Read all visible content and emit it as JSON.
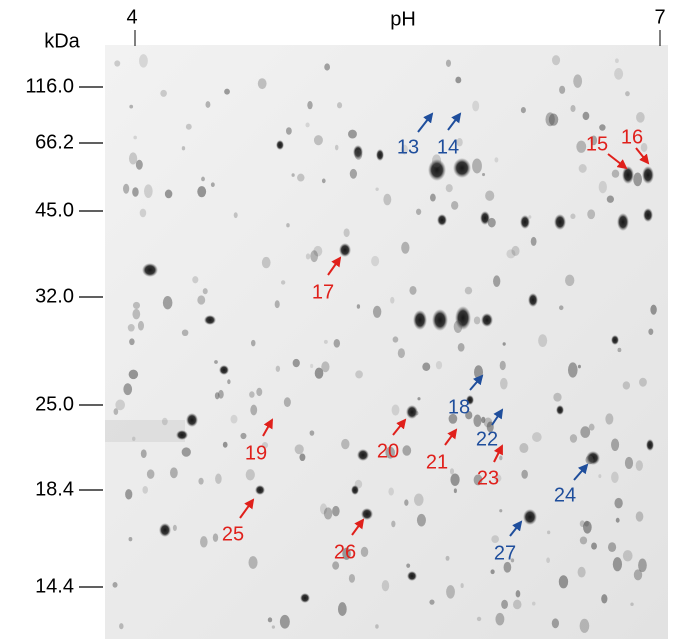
{
  "axes": {
    "y_unit": "kDa",
    "x_unit": "pH",
    "ph_ticks": [
      "4",
      "7"
    ],
    "mw_markers": [
      "116.0",
      "66.2",
      "45.0",
      "32.0",
      "25.0",
      "18.4",
      "14.4"
    ]
  },
  "spots": [
    {
      "label": "13",
      "color": "#1f4e9c"
    },
    {
      "label": "14",
      "color": "#1f4e9c"
    },
    {
      "label": "15",
      "color": "#e0201b"
    },
    {
      "label": "16",
      "color": "#e0201b"
    },
    {
      "label": "17",
      "color": "#e0201b"
    },
    {
      "label": "18",
      "color": "#1f4e9c"
    },
    {
      "label": "19",
      "color": "#e0201b"
    },
    {
      "label": "20",
      "color": "#e0201b"
    },
    {
      "label": "21",
      "color": "#e0201b"
    },
    {
      "label": "22",
      "color": "#1f4e9c"
    },
    {
      "label": "23",
      "color": "#e0201b"
    },
    {
      "label": "24",
      "color": "#1f4e9c"
    },
    {
      "label": "25",
      "color": "#e0201b"
    },
    {
      "label": "26",
      "color": "#e0201b"
    },
    {
      "label": "27",
      "color": "#1f4e9c"
    }
  ]
}
